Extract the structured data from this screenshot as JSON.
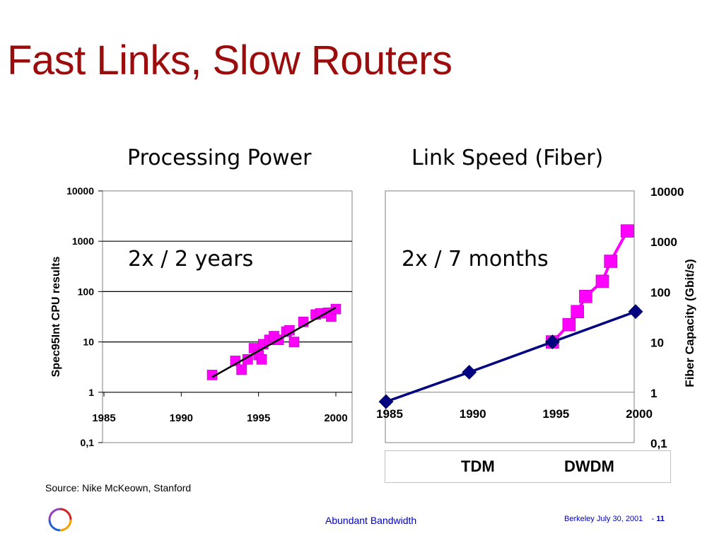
{
  "slide": {
    "title": "Fast Links, Slow Routers"
  },
  "source_note": "Source: Nike McKeown, Stanford",
  "footer": {
    "center_text": "Abundant Bandwidth",
    "date_text": "Berkeley July 30, 2001",
    "dash": "-",
    "page_number": "11"
  },
  "colors": {
    "title": "#9B0D0D",
    "tdm": "#000080",
    "dwdm": "#FF00FF",
    "footer": "#0000C0"
  },
  "chart_data": [
    {
      "type": "scatter",
      "title": "Processing Power",
      "annotation": "2x / 2 years",
      "ylabel": "Spec95Int CPU results",
      "xlabel": "",
      "y_scale": "log",
      "xlim": [
        1985,
        2000
      ],
      "ylim": [
        0.1,
        10000
      ],
      "x_tick_labels": [
        "1985",
        "1990",
        "1995",
        "2000"
      ],
      "y_tick_labels": [
        "0,1",
        "1",
        "10",
        "100",
        "1000",
        "10000"
      ],
      "grid": "horizontal",
      "series": [
        {
          "points": [
            [
              1992,
              2.2
            ],
            [
              1993.5,
              4.2
            ],
            [
              1993.9,
              2.8
            ],
            [
              1994.3,
              4.5
            ],
            [
              1994.7,
              7.5
            ],
            [
              1995.0,
              5.5
            ],
            [
              1995.2,
              4.5
            ],
            [
              1995.3,
              9.0
            ],
            [
              1995.7,
              11
            ],
            [
              1996.0,
              13
            ],
            [
              1996.3,
              11
            ],
            [
              1996.8,
              16
            ],
            [
              1997.0,
              17
            ],
            [
              1997.3,
              10
            ],
            [
              1997.9,
              25
            ],
            [
              1998.7,
              35
            ],
            [
              1999.0,
              37
            ],
            [
              1999.5,
              38
            ],
            [
              1999.7,
              32
            ],
            [
              2000.0,
              45
            ]
          ],
          "trend_line": [
            [
              1992,
              2.0
            ],
            [
              2000,
              48
            ]
          ]
        }
      ]
    },
    {
      "type": "line",
      "title": "Link Speed (Fiber)",
      "annotation": "2x / 7 months",
      "ylabel": "Fiber Capacity (Gbit/s)",
      "xlabel": "",
      "y_scale": "log",
      "xlim": [
        1985,
        2000
      ],
      "ylim": [
        0.1,
        10000
      ],
      "x_tick_labels": [
        "1985",
        "1990",
        "1995",
        "2000"
      ],
      "y_tick_labels": [
        "0,1",
        "1",
        "10",
        "100",
        "1000",
        "10000"
      ],
      "grid": "none",
      "legend": "bottom",
      "series": [
        {
          "name": "TDM",
          "points": [
            [
              1985,
              0.65
            ],
            [
              1990,
              2.5
            ],
            [
              1995,
              10
            ],
            [
              2000,
              40
            ]
          ]
        },
        {
          "name": "DWDM",
          "points": [
            [
              1995,
              10
            ],
            [
              1996,
              22
            ],
            [
              1996.5,
              40
            ],
            [
              1997,
              80
            ],
            [
              1998,
              160
            ],
            [
              1998.5,
              400
            ],
            [
              1999.5,
              1600
            ]
          ]
        }
      ]
    }
  ]
}
